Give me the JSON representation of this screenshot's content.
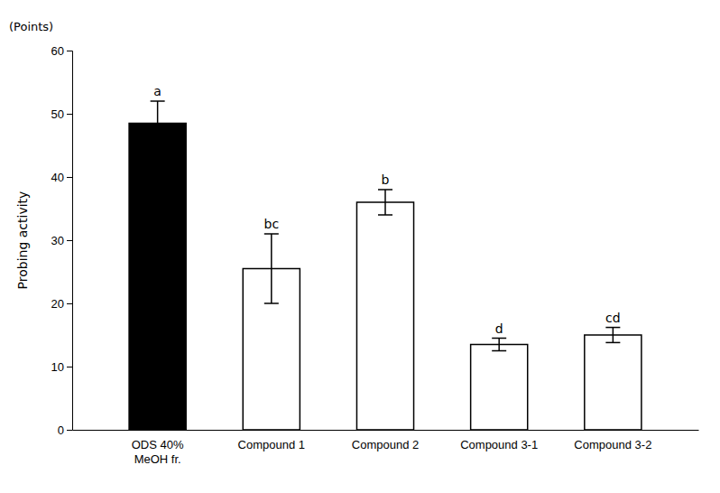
{
  "chart_data": {
    "type": "bar",
    "categories": [
      "ODS 40%\nMeOH fr.",
      "Compound 1",
      "Compound 2",
      "Compound 3-1",
      "Compound 3-2"
    ],
    "values": [
      48.5,
      25.5,
      36.0,
      13.5,
      15.0
    ],
    "errors": [
      3.5,
      5.5,
      2.0,
      1.0,
      1.2
    ],
    "significance_labels": [
      "a",
      "bc",
      "b",
      "d",
      "cd"
    ],
    "colors": [
      "#000000",
      "#ffffff",
      "#ffffff",
      "#ffffff",
      "#ffffff"
    ],
    "ylabel": "Probing activity",
    "ylabel_units": "(Points)",
    "ylim": [
      0,
      60
    ],
    "yticks": [
      0,
      10,
      20,
      30,
      40,
      50,
      60
    ],
    "grid": false
  }
}
